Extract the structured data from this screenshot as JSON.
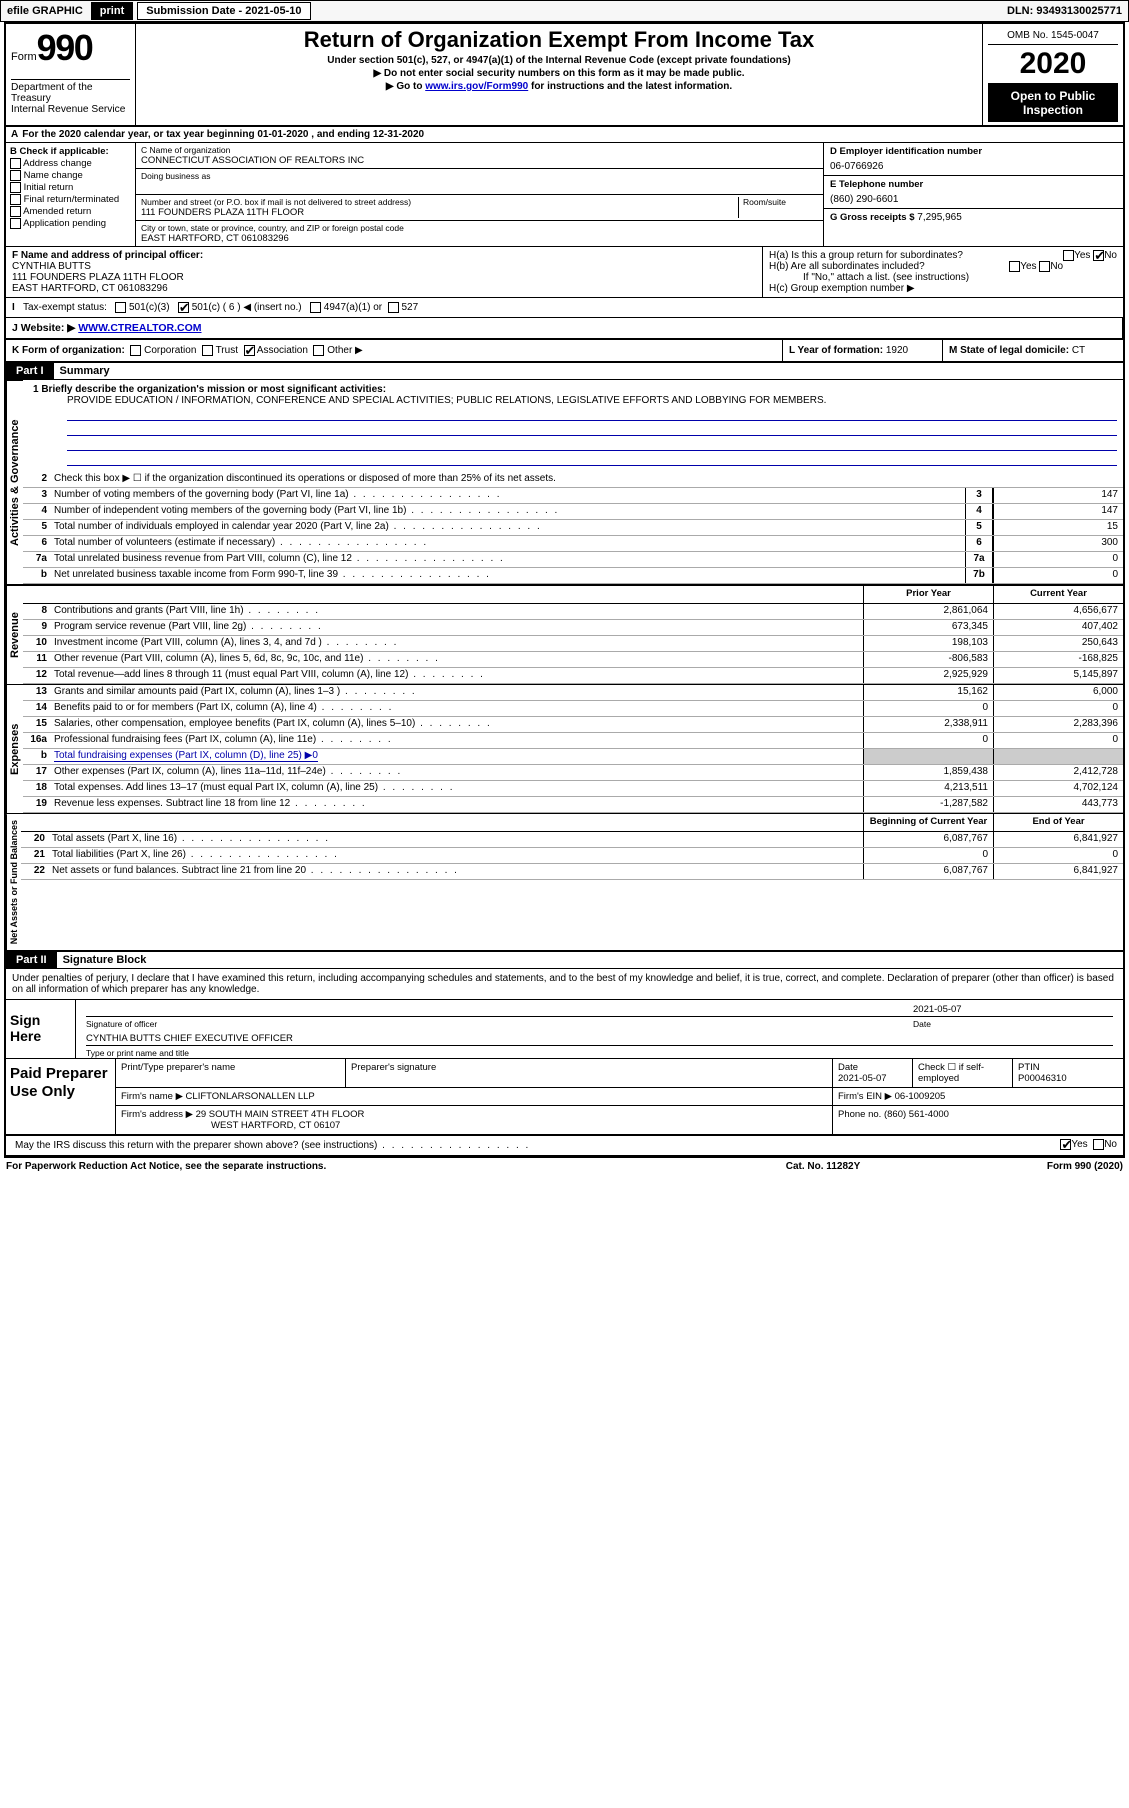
{
  "top": {
    "efile_label": "efile GRAPHIC",
    "print_btn": "print",
    "sub_label": "Submission Date - 2021-05-10",
    "dln": "DLN: 93493130025771"
  },
  "header": {
    "form_word": "Form",
    "form_num": "990",
    "title": "Return of Organization Exempt From Income Tax",
    "subtitle": "Under section 501(c), 527, or 4947(a)(1) of the Internal Revenue Code (except private foundations)",
    "arrow1": "▶ Do not enter social security numbers on this form as it may be made public.",
    "arrow2_pre": "▶ Go to ",
    "arrow2_link": "www.irs.gov/Form990",
    "arrow2_post": " for instructions and the latest information.",
    "omb": "OMB No. 1545-0047",
    "year": "2020",
    "open": "Open to Public Inspection",
    "dept": "Department of the Treasury\nInternal Revenue Service"
  },
  "a_line": "For the 2020 calendar year, or tax year beginning 01-01-2020    , and ending 12-31-2020",
  "b": {
    "label": "B Check if applicable:",
    "opts": [
      "Address change",
      "Name change",
      "Initial return",
      "Final return/terminated",
      "Amended return",
      "Application pending"
    ]
  },
  "c": {
    "name_lab": "C Name of organization",
    "name": "CONNECTICUT ASSOCIATION OF REALTORS INC",
    "dba_lab": "Doing business as",
    "addr_lab": "Number and street (or P.O. box if mail is not delivered to street address)",
    "room_lab": "Room/suite",
    "addr": "111 FOUNDERS PLAZA 11TH FLOOR",
    "city_lab": "City or town, state or province, country, and ZIP or foreign postal code",
    "city": "EAST HARTFORD, CT  061083296"
  },
  "d": {
    "lab": "D Employer identification number",
    "val": "06-0766926"
  },
  "e": {
    "lab": "E Telephone number",
    "val": "(860) 290-6601"
  },
  "g": {
    "lab": "G Gross receipts $",
    "val": "7,295,965"
  },
  "f": {
    "lab": "F Name and address of principal officer:",
    "name": "CYNTHIA BUTTS",
    "addr1": "111 FOUNDERS PLAZA 11TH FLOOR",
    "addr2": "EAST HARTFORD, CT  061083296"
  },
  "h": {
    "a": "H(a)  Is this a group return for subordinates?",
    "b": "H(b)  Are all subordinates included?",
    "b_note": "If \"No,\" attach a list. (see instructions)",
    "c": "H(c)  Group exemption number ▶"
  },
  "i": {
    "lab": "Tax-exempt status:",
    "o1": "501(c)(3)",
    "o2": "501(c) ( 6 ) ◀ (insert no.)",
    "o3": "4947(a)(1) or",
    "o4": "527"
  },
  "j": {
    "lab": "J   Website: ▶",
    "val": "WWW.CTREALTOR.COM"
  },
  "k": {
    "lab": "K Form of organization:",
    "opts": [
      "Corporation",
      "Trust",
      "Association",
      "Other ▶"
    ],
    "l_lab": "L Year of formation:",
    "l_val": "1920",
    "m_lab": "M State of legal domicile:",
    "m_val": "CT"
  },
  "part1": {
    "lab": "Part I",
    "title": "Summary"
  },
  "mission": {
    "q": "1   Briefly describe the organization's mission or most significant activities:",
    "text": "PROVIDE EDUCATION / INFORMATION, CONFERENCE AND SPECIAL ACTIVITIES; PUBLIC RELATIONS, LEGISLATIVE EFFORTS AND LOBBYING FOR MEMBERS."
  },
  "line2": "Check this box ▶ ☐  if the organization discontinued its operations or disposed of more than 25% of its net assets.",
  "act_rows": [
    {
      "n": "3",
      "d": "Number of voting members of the governing body (Part VI, line 1a)",
      "b": "3",
      "v": "147"
    },
    {
      "n": "4",
      "d": "Number of independent voting members of the governing body (Part VI, line 1b)",
      "b": "4",
      "v": "147"
    },
    {
      "n": "5",
      "d": "Total number of individuals employed in calendar year 2020 (Part V, line 2a)",
      "b": "5",
      "v": "15"
    },
    {
      "n": "6",
      "d": "Total number of volunteers (estimate if necessary)",
      "b": "6",
      "v": "300"
    },
    {
      "n": "7a",
      "d": "Total unrelated business revenue from Part VIII, column (C), line 12",
      "b": "7a",
      "v": "0"
    },
    {
      "n": "b",
      "d": "Net unrelated business taxable income from Form 990-T, line 39",
      "b": "7b",
      "v": "0"
    }
  ],
  "colheads": {
    "prior": "Prior Year",
    "current": "Current Year"
  },
  "rev_rows": [
    {
      "n": "8",
      "d": "Contributions and grants (Part VIII, line 1h)",
      "p": "2,861,064",
      "c": "4,656,677"
    },
    {
      "n": "9",
      "d": "Program service revenue (Part VIII, line 2g)",
      "p": "673,345",
      "c": "407,402"
    },
    {
      "n": "10",
      "d": "Investment income (Part VIII, column (A), lines 3, 4, and 7d )",
      "p": "198,103",
      "c": "250,643"
    },
    {
      "n": "11",
      "d": "Other revenue (Part VIII, column (A), lines 5, 6d, 8c, 9c, 10c, and 11e)",
      "p": "-806,583",
      "c": "-168,825"
    },
    {
      "n": "12",
      "d": "Total revenue—add lines 8 through 11 (must equal Part VIII, column (A), line 12)",
      "p": "2,925,929",
      "c": "5,145,897"
    }
  ],
  "exp_rows": [
    {
      "n": "13",
      "d": "Grants and similar amounts paid (Part IX, column (A), lines 1–3 )",
      "p": "15,162",
      "c": "6,000"
    },
    {
      "n": "14",
      "d": "Benefits paid to or for members (Part IX, column (A), line 4)",
      "p": "0",
      "c": "0"
    },
    {
      "n": "15",
      "d": "Salaries, other compensation, employee benefits (Part IX, column (A), lines 5–10)",
      "p": "2,338,911",
      "c": "2,283,396"
    },
    {
      "n": "16a",
      "d": "Professional fundraising fees (Part IX, column (A), line 11e)",
      "p": "0",
      "c": "0"
    },
    {
      "n": "b",
      "d": "Total fundraising expenses (Part IX, column (D), line 25) ▶0",
      "shade": true
    },
    {
      "n": "17",
      "d": "Other expenses (Part IX, column (A), lines 11a–11d, 11f–24e)",
      "p": "1,859,438",
      "c": "2,412,728"
    },
    {
      "n": "18",
      "d": "Total expenses. Add lines 13–17 (must equal Part IX, column (A), line 25)",
      "p": "4,213,511",
      "c": "4,702,124"
    },
    {
      "n": "19",
      "d": "Revenue less expenses. Subtract line 18 from line 12",
      "p": "-1,287,582",
      "c": "443,773"
    }
  ],
  "na_heads": {
    "begin": "Beginning of Current Year",
    "end": "End of Year"
  },
  "na_rows": [
    {
      "n": "20",
      "d": "Total assets (Part X, line 16)",
      "p": "6,087,767",
      "c": "6,841,927"
    },
    {
      "n": "21",
      "d": "Total liabilities (Part X, line 26)",
      "p": "0",
      "c": "0"
    },
    {
      "n": "22",
      "d": "Net assets or fund balances. Subtract line 21 from line 20",
      "p": "6,087,767",
      "c": "6,841,927"
    }
  ],
  "part2": {
    "lab": "Part II",
    "title": "Signature Block"
  },
  "perjury": "Under penalties of perjury, I declare that I have examined this return, including accompanying schedules and statements, and to the best of my knowledge and belief, it is true, correct, and complete. Declaration of preparer (other than officer) is based on all information of which preparer has any knowledge.",
  "sign": {
    "here": "Sign Here",
    "sig_lab": "Signature of officer",
    "date_lab": "Date",
    "date": "2021-05-07",
    "name": "CYNTHIA BUTTS  CHIEF EXECUTIVE OFFICER",
    "name_lab": "Type or print name and title"
  },
  "paid": {
    "title": "Paid Preparer Use Only",
    "h1": "Print/Type preparer's name",
    "h2": "Preparer's signature",
    "h3": "Date",
    "h3v": "2021-05-07",
    "h4": "Check ☐ if self-employed",
    "h5": "PTIN",
    "h5v": "P00046310",
    "firm_lab": "Firm's name    ▶",
    "firm": "CLIFTONLARSONALLEN LLP",
    "ein_lab": "Firm's EIN ▶",
    "ein": "06-1009205",
    "addr_lab": "Firm's address ▶",
    "addr1": "29 SOUTH MAIN STREET 4TH FLOOR",
    "addr2": "WEST HARTFORD, CT  06107",
    "phone_lab": "Phone no.",
    "phone": "(860) 561-4000"
  },
  "discuss": "May the IRS discuss this return with the preparer shown above? (see instructions)",
  "foot": {
    "left": "For Paperwork Reduction Act Notice, see the separate instructions.",
    "mid": "Cat. No. 11282Y",
    "right": "Form 990 (2020)"
  },
  "tabs": {
    "act": "Activities & Governance",
    "rev": "Revenue",
    "exp": "Expenses",
    "na": "Net Assets or Fund Balances"
  }
}
